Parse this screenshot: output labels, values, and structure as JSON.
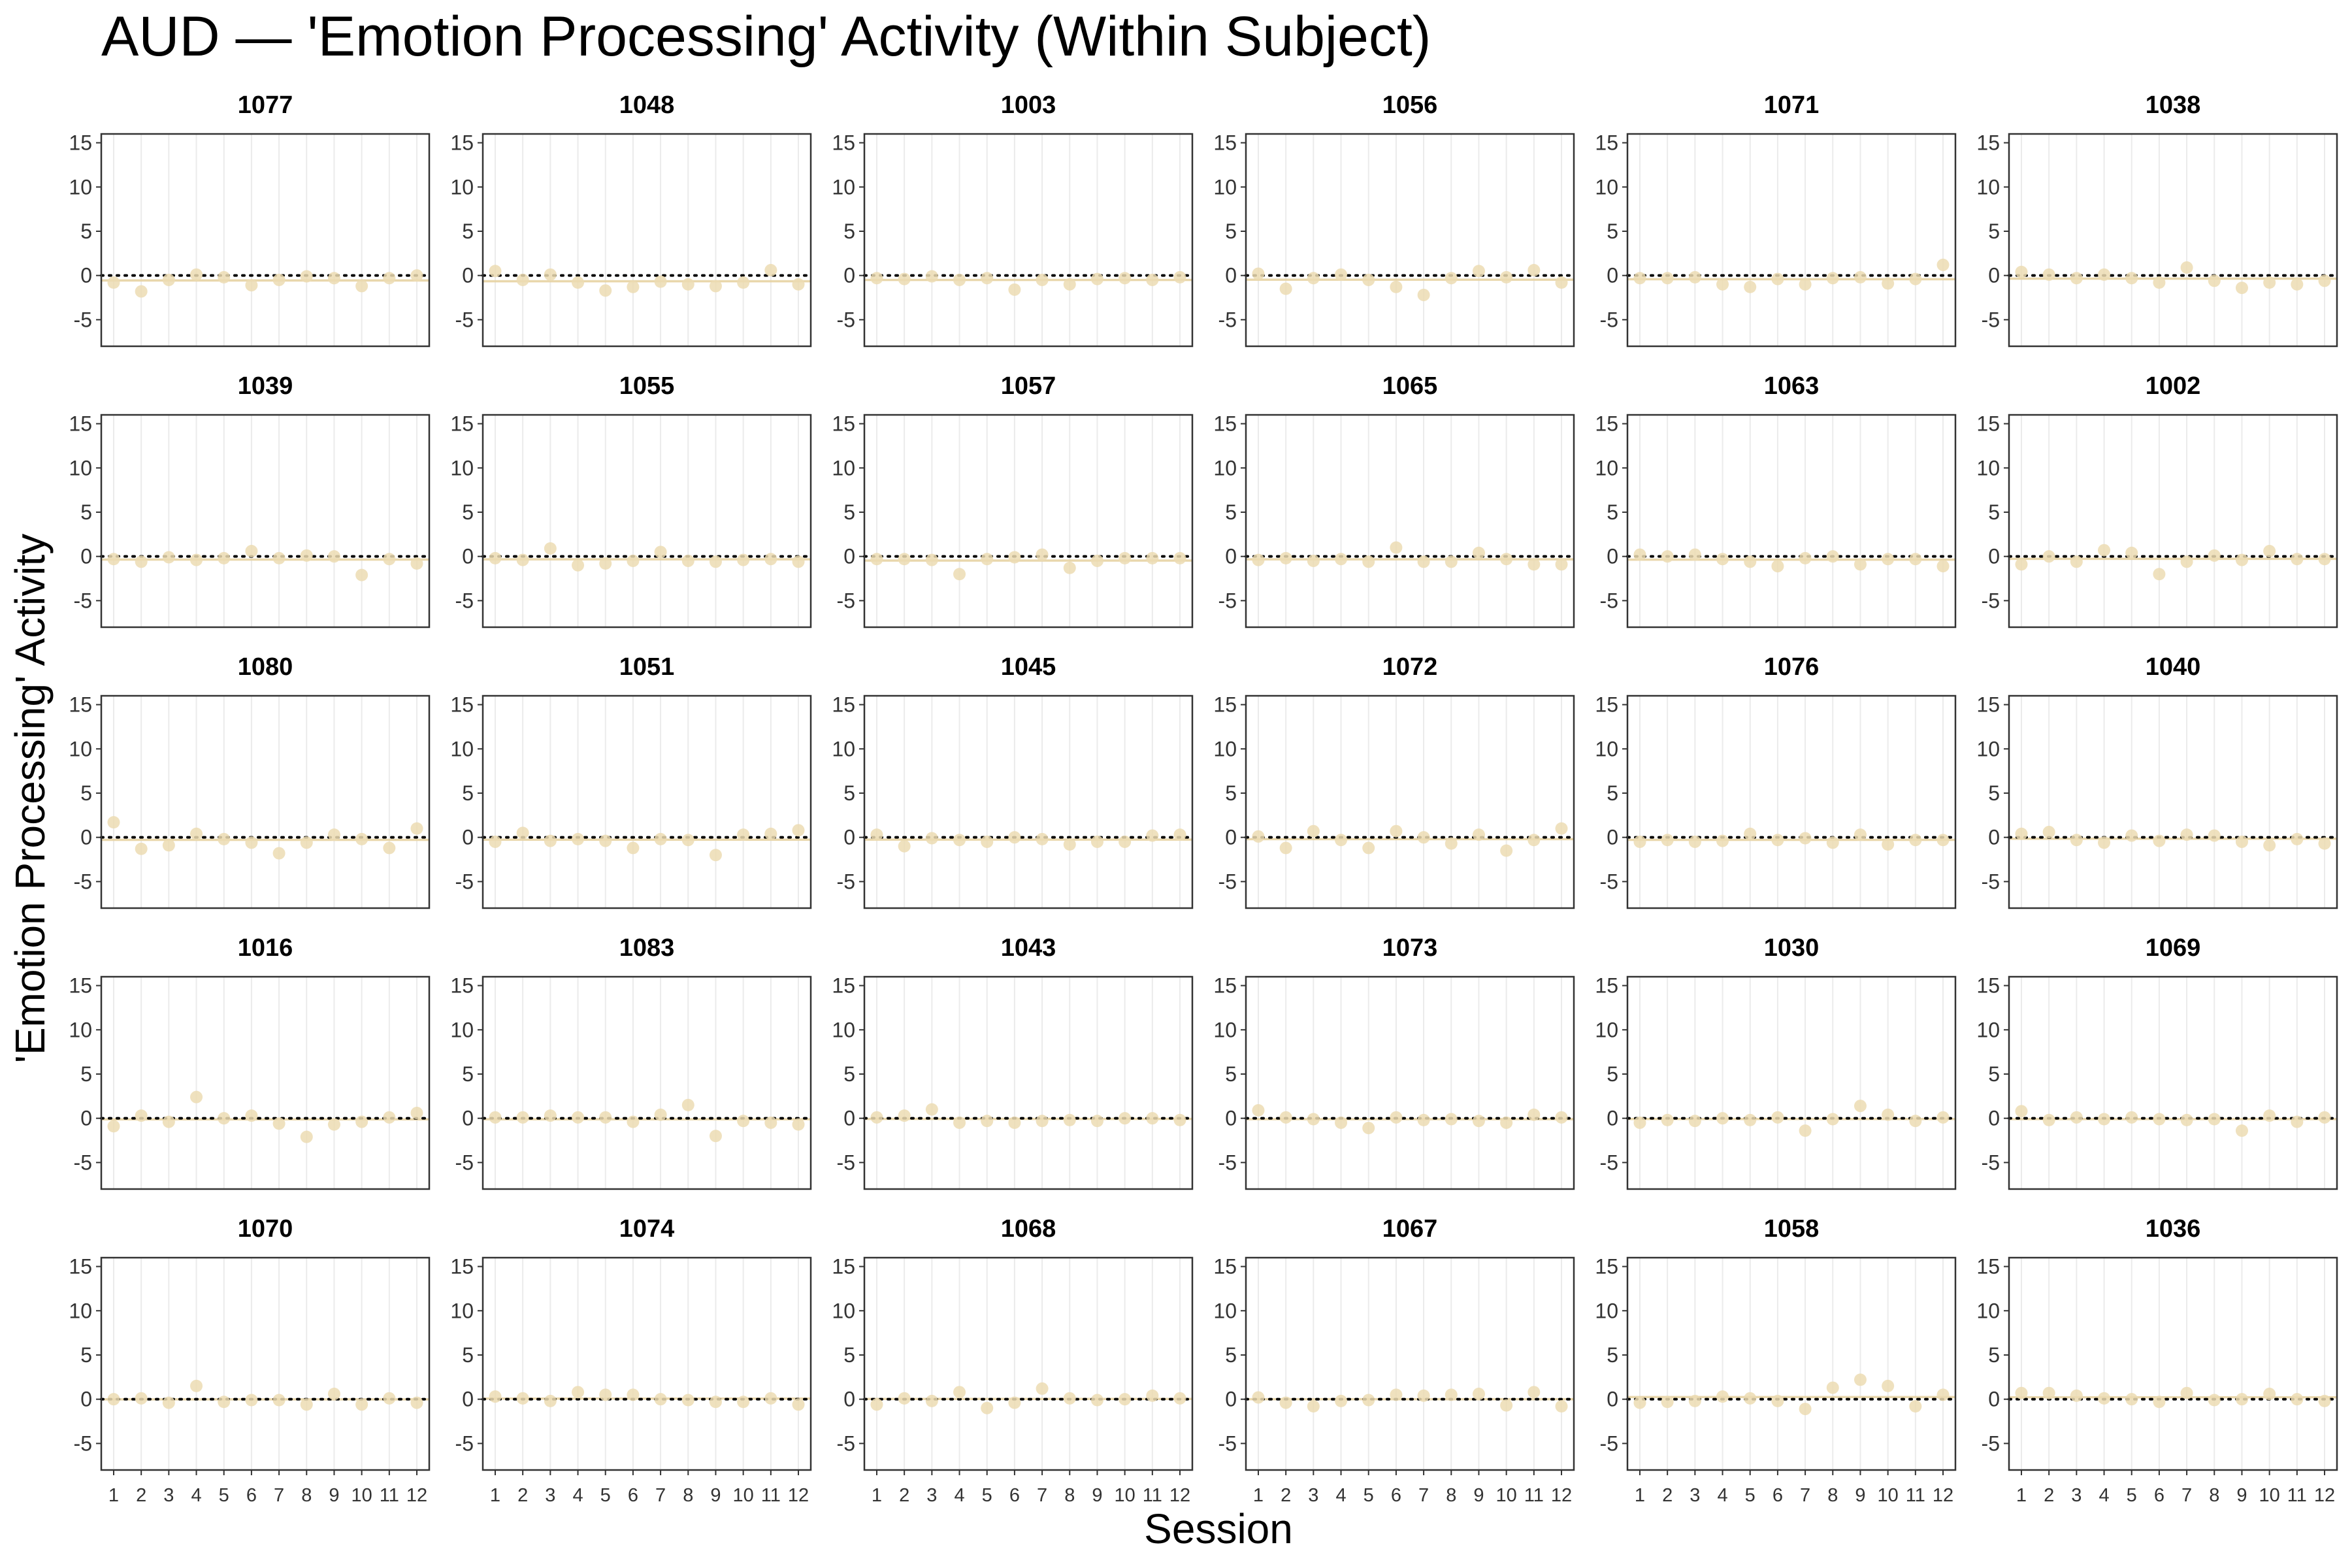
{
  "chart_data": {
    "type": "scatter",
    "title": "AUD — 'Emotion Processing' Activity (Within Subject)",
    "xlabel": "Session",
    "ylabel": "'Emotion Processing' Activity",
    "x": [
      1,
      2,
      3,
      4,
      5,
      6,
      7,
      8,
      9,
      10,
      11,
      12
    ],
    "x_tick_labels": [
      "1",
      "2",
      "3",
      "4",
      "5",
      "6",
      "7",
      "8",
      "9",
      "10",
      "11",
      "12"
    ],
    "ylim": [
      -8,
      16
    ],
    "y_ticks": [
      -5,
      0,
      5,
      10,
      15
    ],
    "y_tick_labels": [
      "-5",
      "0",
      "5",
      "10",
      "15"
    ],
    "reference_line": 0,
    "grid": "vertical",
    "colors": {
      "point": "#ecdcb3",
      "trend": "#e7d3a3",
      "reference": "#000000",
      "grid": "#ebebeb",
      "frame": "#333333"
    },
    "panels": [
      {
        "subject": "1077",
        "values": [
          -0.8,
          -1.8,
          -0.5,
          0.1,
          -0.2,
          -1.1,
          -0.5,
          -0.1,
          -0.3,
          -1.2,
          -0.3,
          0.0
        ]
      },
      {
        "subject": "1048",
        "values": [
          0.5,
          -0.5,
          0.1,
          -0.8,
          -1.7,
          -1.3,
          -0.7,
          -1.0,
          -1.2,
          -0.8,
          0.6,
          -1.0
        ]
      },
      {
        "subject": "1003",
        "values": [
          -0.3,
          -0.4,
          -0.1,
          -0.5,
          -0.3,
          -1.6,
          -0.5,
          -1.0,
          -0.4,
          -0.3,
          -0.5,
          -0.2
        ]
      },
      {
        "subject": "1056",
        "values": [
          0.2,
          -1.5,
          -0.3,
          0.1,
          -0.5,
          -1.3,
          -2.2,
          -0.3,
          0.5,
          -0.2,
          0.6,
          -0.8
        ]
      },
      {
        "subject": "1071",
        "values": [
          -0.3,
          -0.3,
          -0.2,
          -1.0,
          -1.3,
          -0.4,
          -1.0,
          -0.3,
          -0.2,
          -0.9,
          -0.4,
          1.2
        ]
      },
      {
        "subject": "1038",
        "values": [
          0.4,
          0.1,
          -0.3,
          0.1,
          -0.3,
          -0.8,
          0.9,
          -0.6,
          -1.4,
          -0.8,
          -1.0,
          -0.6
        ]
      },
      {
        "subject": "1039",
        "values": [
          -0.3,
          -0.6,
          -0.1,
          -0.4,
          -0.2,
          0.6,
          -0.2,
          0.1,
          0.0,
          -2.1,
          -0.3,
          -0.8
        ]
      },
      {
        "subject": "1055",
        "values": [
          -0.2,
          -0.4,
          0.9,
          -1.0,
          -0.8,
          -0.5,
          0.5,
          -0.5,
          -0.6,
          -0.4,
          -0.3,
          -0.6
        ]
      },
      {
        "subject": "1057",
        "values": [
          -0.3,
          -0.3,
          -0.4,
          -2.0,
          -0.3,
          -0.1,
          0.2,
          -1.3,
          -0.5,
          -0.2,
          -0.2,
          -0.2
        ]
      },
      {
        "subject": "1065",
        "values": [
          -0.4,
          -0.2,
          -0.5,
          -0.3,
          -0.6,
          1.0,
          -0.6,
          -0.6,
          0.4,
          -0.3,
          -0.9,
          -0.9
        ]
      },
      {
        "subject": "1063",
        "values": [
          0.2,
          0.0,
          0.2,
          -0.3,
          -0.6,
          -1.1,
          -0.2,
          0.0,
          -0.9,
          -0.3,
          -0.3,
          -1.1
        ]
      },
      {
        "subject": "1002",
        "values": [
          -0.9,
          0.0,
          -0.6,
          0.7,
          0.4,
          -2.0,
          -0.6,
          0.1,
          -0.4,
          0.6,
          -0.3,
          -0.3
        ]
      },
      {
        "subject": "1080",
        "values": [
          1.7,
          -1.3,
          -0.9,
          0.4,
          -0.2,
          -0.6,
          -1.8,
          -0.6,
          0.3,
          -0.2,
          -1.2,
          1.0
        ]
      },
      {
        "subject": "1051",
        "values": [
          -0.5,
          0.5,
          -0.4,
          -0.2,
          -0.4,
          -1.2,
          -0.2,
          -0.3,
          -2.0,
          0.3,
          0.4,
          0.8
        ]
      },
      {
        "subject": "1045",
        "values": [
          0.3,
          -1.0,
          -0.1,
          -0.3,
          -0.5,
          0.0,
          -0.2,
          -0.8,
          -0.5,
          -0.5,
          0.2,
          0.3
        ]
      },
      {
        "subject": "1072",
        "values": [
          0.1,
          -1.2,
          0.7,
          -0.3,
          -1.2,
          0.7,
          0.0,
          -0.7,
          0.3,
          -1.5,
          -0.3,
          1.0
        ]
      },
      {
        "subject": "1076",
        "values": [
          -0.5,
          -0.3,
          -0.5,
          -0.4,
          0.4,
          -0.3,
          -0.1,
          -0.6,
          0.3,
          -0.8,
          -0.3,
          -0.3
        ]
      },
      {
        "subject": "1040",
        "values": [
          0.4,
          0.6,
          -0.3,
          -0.6,
          0.2,
          -0.4,
          0.3,
          0.2,
          -0.5,
          -0.9,
          -0.2,
          -0.7
        ]
      },
      {
        "subject": "1016",
        "values": [
          -0.9,
          0.3,
          -0.4,
          2.4,
          0.0,
          0.3,
          -0.6,
          -2.1,
          -0.7,
          -0.4,
          0.1,
          0.6
        ]
      },
      {
        "subject": "1083",
        "values": [
          0.1,
          0.1,
          0.3,
          0.1,
          0.1,
          -0.4,
          0.4,
          1.5,
          -2.0,
          -0.3,
          -0.5,
          -0.7
        ]
      },
      {
        "subject": "1043",
        "values": [
          0.1,
          0.3,
          1.0,
          -0.5,
          -0.3,
          -0.5,
          -0.3,
          -0.2,
          -0.3,
          0.0,
          0.0,
          -0.2
        ]
      },
      {
        "subject": "1073",
        "values": [
          0.9,
          0.1,
          -0.1,
          -0.5,
          -1.1,
          0.1,
          -0.2,
          -0.1,
          -0.3,
          -0.5,
          0.4,
          0.1
        ]
      },
      {
        "subject": "1030",
        "values": [
          -0.5,
          -0.2,
          -0.3,
          0.0,
          -0.2,
          0.1,
          -1.4,
          -0.1,
          1.4,
          0.4,
          -0.3,
          0.1
        ]
      },
      {
        "subject": "1069",
        "values": [
          0.8,
          -0.2,
          0.1,
          -0.1,
          0.1,
          -0.1,
          -0.2,
          -0.1,
          -1.4,
          0.3,
          -0.4,
          0.1
        ]
      },
      {
        "subject": "1070",
        "values": [
          0.0,
          0.1,
          -0.4,
          1.5,
          -0.3,
          -0.1,
          -0.1,
          -0.6,
          0.6,
          -0.6,
          0.1,
          -0.4
        ]
      },
      {
        "subject": "1074",
        "values": [
          0.3,
          0.1,
          -0.2,
          0.8,
          0.5,
          0.5,
          0.0,
          -0.1,
          -0.3,
          -0.3,
          0.1,
          -0.6
        ]
      },
      {
        "subject": "1068",
        "values": [
          -0.6,
          0.1,
          -0.2,
          0.8,
          -1.0,
          -0.4,
          1.2,
          0.1,
          -0.1,
          0.0,
          0.4,
          0.1
        ]
      },
      {
        "subject": "1067",
        "values": [
          0.2,
          -0.4,
          -0.8,
          -0.2,
          -0.1,
          0.5,
          0.4,
          0.5,
          0.6,
          -0.7,
          0.8,
          -0.8
        ]
      },
      {
        "subject": "1058",
        "values": [
          -0.4,
          -0.3,
          -0.2,
          0.3,
          0.1,
          -0.2,
          -1.1,
          1.3,
          2.2,
          1.5,
          -0.8,
          0.5
        ]
      },
      {
        "subject": "1036",
        "values": [
          0.7,
          0.7,
          0.4,
          0.1,
          0.0,
          -0.3,
          0.7,
          -0.1,
          0.0,
          0.6,
          0.0,
          -0.2
        ]
      }
    ]
  }
}
